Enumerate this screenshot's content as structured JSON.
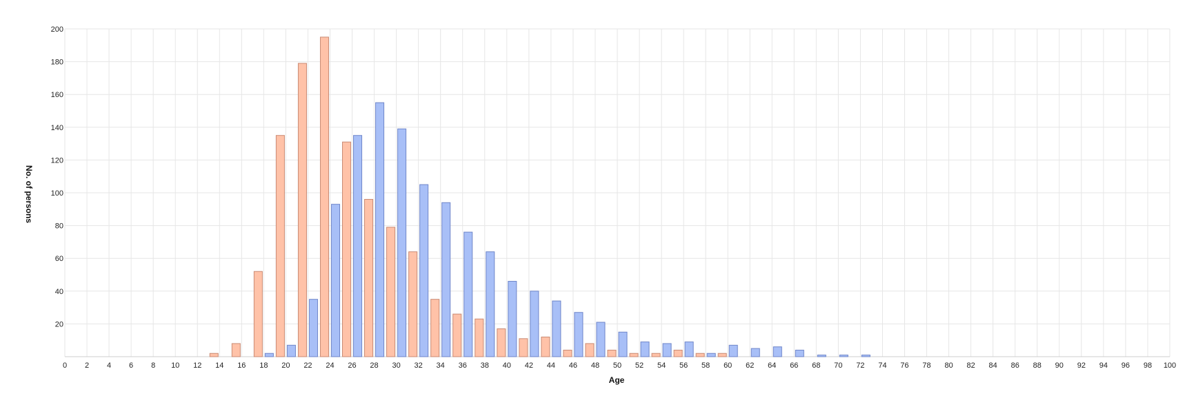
{
  "chart_data": {
    "type": "bar",
    "xlabel": "Age",
    "ylabel": "No. of persons",
    "xlim": [
      0,
      100
    ],
    "ylim": [
      0,
      200
    ],
    "x_ticks": [
      0,
      2,
      4,
      6,
      8,
      10,
      12,
      14,
      16,
      18,
      20,
      22,
      24,
      26,
      28,
      30,
      32,
      34,
      36,
      38,
      40,
      42,
      44,
      46,
      48,
      50,
      52,
      54,
      56,
      58,
      60,
      62,
      64,
      66,
      68,
      70,
      72,
      74,
      76,
      78,
      80,
      82,
      84,
      86,
      88,
      90,
      92,
      94,
      96,
      98,
      100
    ],
    "y_ticks": [
      20,
      40,
      60,
      80,
      100,
      120,
      140,
      160,
      180,
      200
    ],
    "grid": true,
    "bar_width_units": 0.75,
    "series": [
      {
        "color": "#ffc2a8",
        "stroke": "#c98a73",
        "points": [
          {
            "x": 13.5,
            "y": 2
          },
          {
            "x": 15.5,
            "y": 8
          },
          {
            "x": 17.5,
            "y": 52
          },
          {
            "x": 19.5,
            "y": 135
          },
          {
            "x": 21.5,
            "y": 179
          },
          {
            "x": 23.5,
            "y": 195
          },
          {
            "x": 25.5,
            "y": 131
          },
          {
            "x": 27.5,
            "y": 96
          },
          {
            "x": 29.5,
            "y": 79
          },
          {
            "x": 31.5,
            "y": 64
          },
          {
            "x": 33.5,
            "y": 35
          },
          {
            "x": 35.5,
            "y": 26
          },
          {
            "x": 37.5,
            "y": 23
          },
          {
            "x": 39.5,
            "y": 17
          },
          {
            "x": 41.5,
            "y": 11
          },
          {
            "x": 43.5,
            "y": 12
          },
          {
            "x": 45.5,
            "y": 4
          },
          {
            "x": 47.5,
            "y": 8
          },
          {
            "x": 49.5,
            "y": 4
          },
          {
            "x": 51.5,
            "y": 2
          },
          {
            "x": 53.5,
            "y": 2
          },
          {
            "x": 55.5,
            "y": 4
          },
          {
            "x": 57.5,
            "y": 2
          },
          {
            "x": 59.5,
            "y": 2
          }
        ]
      },
      {
        "color": "#a8bff7",
        "stroke": "#6f86c9",
        "points": [
          {
            "x": 18.5,
            "y": 2
          },
          {
            "x": 20.5,
            "y": 7
          },
          {
            "x": 22.5,
            "y": 35
          },
          {
            "x": 24.5,
            "y": 93
          },
          {
            "x": 26.5,
            "y": 135
          },
          {
            "x": 28.5,
            "y": 155
          },
          {
            "x": 30.5,
            "y": 139
          },
          {
            "x": 32.5,
            "y": 105
          },
          {
            "x": 34.5,
            "y": 94
          },
          {
            "x": 36.5,
            "y": 76
          },
          {
            "x": 38.5,
            "y": 64
          },
          {
            "x": 40.5,
            "y": 46
          },
          {
            "x": 42.5,
            "y": 40
          },
          {
            "x": 44.5,
            "y": 34
          },
          {
            "x": 46.5,
            "y": 27
          },
          {
            "x": 48.5,
            "y": 21
          },
          {
            "x": 50.5,
            "y": 15
          },
          {
            "x": 52.5,
            "y": 9
          },
          {
            "x": 54.5,
            "y": 8
          },
          {
            "x": 56.5,
            "y": 9
          },
          {
            "x": 58.5,
            "y": 2
          },
          {
            "x": 60.5,
            "y": 7
          },
          {
            "x": 62.5,
            "y": 5
          },
          {
            "x": 64.5,
            "y": 6
          },
          {
            "x": 66.5,
            "y": 4
          },
          {
            "x": 68.5,
            "y": 1
          },
          {
            "x": 70.5,
            "y": 1
          },
          {
            "x": 72.5,
            "y": 1
          }
        ]
      }
    ]
  }
}
